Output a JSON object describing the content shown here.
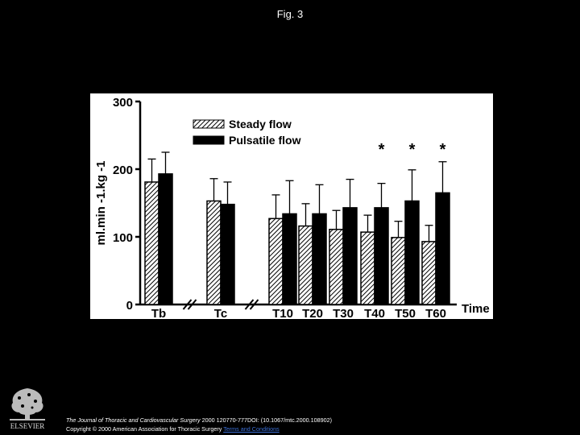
{
  "slide": {
    "title": "Fig. 3"
  },
  "citation": {
    "journal": "The Journal of Thoracic and Cardiovascular Surgery",
    "details": " 2000 120770-777DOI: (10.1067/mtc.2000.108902)",
    "copyright": "Copyright © 2000 American Association for Thoracic Surgery",
    "terms_link": "Terms and Conditions"
  },
  "logo": {
    "text": "ELSEVIER"
  },
  "colors": {
    "background": "#000000",
    "figure_bg": "#ffffff",
    "steady": "hatched",
    "pulsatile": "#000000",
    "link": "#3b6fd6"
  },
  "chart_data": {
    "type": "bar",
    "title": "",
    "xlabel": "Time",
    "ylabel": "ml.min -1.kg -1",
    "ylim": [
      0,
      300
    ],
    "yticks": [
      0,
      100,
      200,
      300
    ],
    "categories": [
      "Tb",
      "Tc",
      "T10",
      "T20",
      "T30",
      "T40",
      "T50",
      "T60"
    ],
    "axis_breaks_after": [
      "Tb",
      "Tc"
    ],
    "legend": {
      "position": "top-center"
    },
    "series": [
      {
        "name": "Steady flow",
        "pattern": "hatched",
        "values": [
          181,
          153,
          127,
          116,
          111,
          107,
          99,
          93
        ],
        "errors": [
          34,
          33,
          35,
          33,
          28,
          25,
          24,
          24
        ]
      },
      {
        "name": "Pulsatile flow",
        "pattern": "solid",
        "values": [
          193,
          148,
          134,
          134,
          143,
          143,
          153,
          165
        ],
        "errors": [
          32,
          33,
          49,
          43,
          42,
          36,
          46,
          46
        ]
      }
    ],
    "annotations": [
      {
        "category": "T40",
        "text": "*"
      },
      {
        "category": "T50",
        "text": "*"
      },
      {
        "category": "T60",
        "text": "*"
      }
    ]
  }
}
